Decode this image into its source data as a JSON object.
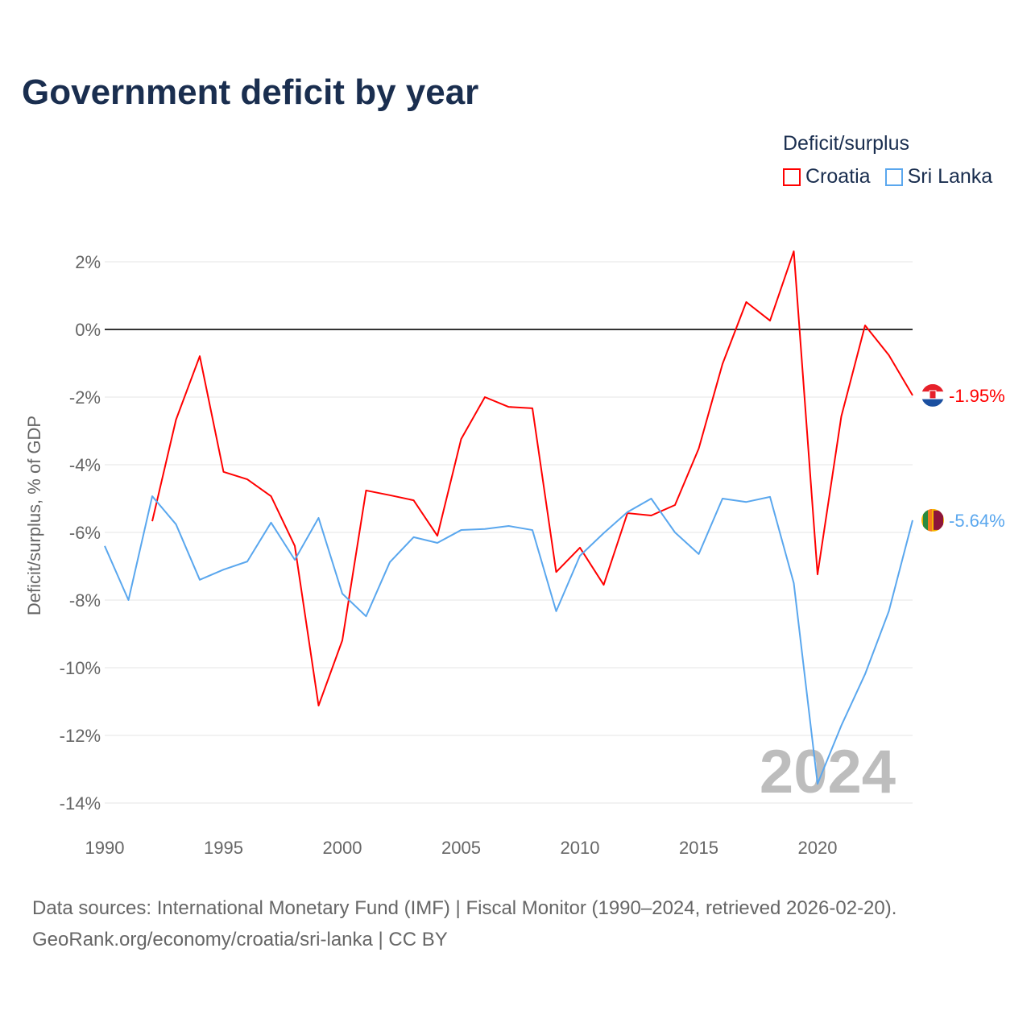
{
  "title": "Government deficit by year",
  "legend": {
    "title": "Deficit/surplus",
    "items": [
      {
        "label": "Croatia",
        "color": "#ff0000"
      },
      {
        "label": "Sri Lanka",
        "color": "#5aa7ee"
      }
    ]
  },
  "chart_data": {
    "type": "line",
    "title": "Government deficit by year",
    "xlabel": "",
    "ylabel": "Deficit/surplus, % of GDP",
    "xlim": [
      1990,
      2024
    ],
    "ylim": [
      -14.5,
      2.5
    ],
    "x_ticks": [
      "1990",
      "1995",
      "2000",
      "2005",
      "2010",
      "2015",
      "2020"
    ],
    "y_ticks": [
      {
        "v": 2,
        "label": "2%"
      },
      {
        "v": 0,
        "label": "0%"
      },
      {
        "v": -2,
        "label": "-2%"
      },
      {
        "v": -4,
        "label": "-4%"
      },
      {
        "v": -6,
        "label": "-6%"
      },
      {
        "v": -8,
        "label": "-8%"
      },
      {
        "v": -10,
        "label": "-10%"
      },
      {
        "v": -12,
        "label": "-12%"
      },
      {
        "v": -14,
        "label": "-14%"
      }
    ],
    "grid": true,
    "year_watermark": "2024",
    "series": [
      {
        "name": "Croatia",
        "color": "#ff0000",
        "end_label": "-1.95%",
        "x": [
          1992,
          1993,
          1994,
          1995,
          1996,
          1997,
          1998,
          1999,
          2000,
          2001,
          2002,
          2003,
          2004,
          2005,
          2006,
          2007,
          2008,
          2009,
          2010,
          2011,
          2012,
          2013,
          2014,
          2015,
          2016,
          2017,
          2018,
          2019,
          2020,
          2021,
          2022,
          2023,
          2024
        ],
        "values": [
          -5.67,
          -2.67,
          -0.79,
          -4.21,
          -4.43,
          -4.93,
          -6.4,
          -11.12,
          -9.19,
          -4.76,
          -4.9,
          -5.05,
          -6.1,
          -3.24,
          -2.0,
          -2.29,
          -2.33,
          -7.17,
          -6.45,
          -7.55,
          -5.43,
          -5.5,
          -5.19,
          -3.52,
          -1.02,
          0.81,
          0.26,
          2.31,
          -7.24,
          -2.57,
          0.12,
          -0.76,
          -1.95
        ]
      },
      {
        "name": "Sri Lanka",
        "color": "#5aa7ee",
        "end_label": "-5.64%",
        "x": [
          1990,
          1991,
          1992,
          1993,
          1994,
          1995,
          1996,
          1997,
          1998,
          1999,
          2000,
          2001,
          2002,
          2003,
          2004,
          2005,
          2006,
          2007,
          2008,
          2009,
          2010,
          2011,
          2012,
          2013,
          2014,
          2015,
          2016,
          2017,
          2018,
          2019,
          2020,
          2021,
          2022,
          2023,
          2024
        ],
        "values": [
          -6.4,
          -8.0,
          -4.93,
          -5.76,
          -7.4,
          -7.1,
          -6.86,
          -5.71,
          -6.81,
          -5.57,
          -7.81,
          -8.48,
          -6.88,
          -6.14,
          -6.31,
          -5.93,
          -5.9,
          -5.81,
          -5.93,
          -8.33,
          -6.69,
          -6.02,
          -5.4,
          -5.0,
          -6.0,
          -6.64,
          -5.0,
          -5.1,
          -4.95,
          -7.5,
          -13.43,
          -11.71,
          -10.19,
          -8.33,
          -5.64
        ]
      }
    ]
  },
  "source": {
    "line1": "Data sources: International Monetary Fund (IMF) | Fiscal Monitor (1990–2024, retrieved 2026-02-20).",
    "line2": "GeoRank.org/economy/croatia/sri-lanka | CC BY"
  }
}
